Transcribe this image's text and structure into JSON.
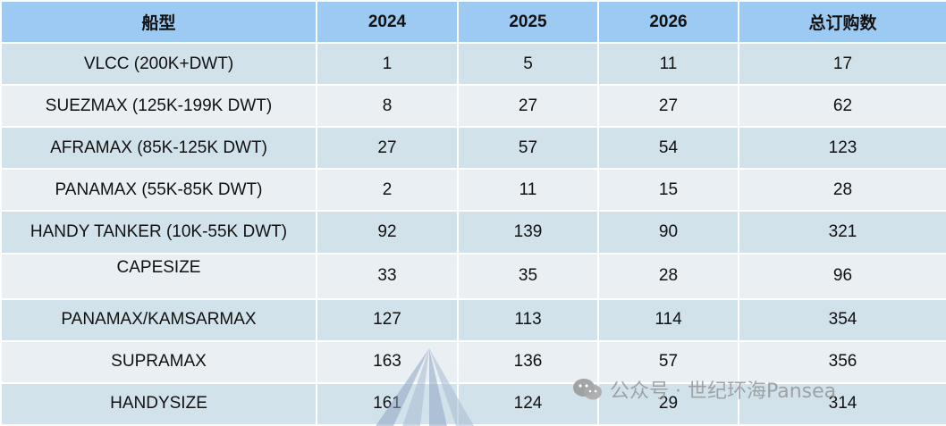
{
  "table": {
    "headers": [
      "船型",
      "2024",
      "2025",
      "2026",
      "总订购数"
    ],
    "rows": [
      [
        "VLCC (200K+DWT)",
        "1",
        "5",
        "11",
        "17"
      ],
      [
        "SUEZMAX (125K-199K DWT)",
        "8",
        "27",
        "27",
        "62"
      ],
      [
        "AFRAMAX (85K-125K DWT)",
        "27",
        "57",
        "54",
        "123"
      ],
      [
        "PANAMAX (55K-85K DWT)",
        "2",
        "11",
        "15",
        "28"
      ],
      [
        "HANDY TANKER (10K-55K DWT)",
        "92",
        "139",
        "90",
        "321"
      ],
      [
        "CAPESIZE",
        "33",
        "35",
        "28",
        "96"
      ],
      [
        "PANAMAX/KAMSARMAX",
        "127",
        "113",
        "114",
        "354"
      ],
      [
        "SUPRAMAX",
        "163",
        "136",
        "57",
        "356"
      ],
      [
        "HANDYSIZE",
        "161",
        "124",
        "29",
        "314"
      ]
    ]
  },
  "watermark": {
    "text": "公众号 · 世纪环海Pansea",
    "icon": "wechat-icon"
  },
  "colors": {
    "header_bg": "#9dcaf2",
    "row_dark_bg": "#d2e2ea",
    "row_light_bg": "#e9eff3"
  }
}
